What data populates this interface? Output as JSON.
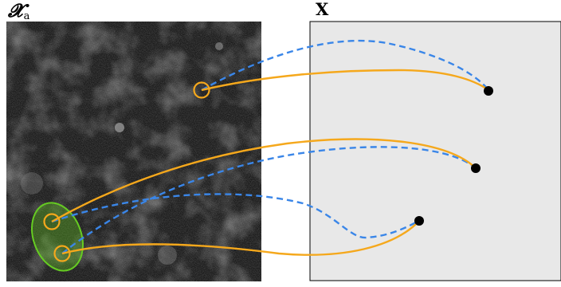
{
  "left_panel": {
    "label_main": "𝓧",
    "label_sub": "a"
  },
  "right_panel": {
    "label": "X"
  },
  "colors": {
    "solid_curve": "#f5a81c",
    "dashed_curve": "#3a86e8",
    "point": "#000000",
    "ellipse_stroke": "#66cc22",
    "ellipse_fill": "#66cc22",
    "panel_fill": "#e8e8e8",
    "image_bg": "#1a1a1a"
  },
  "icons": {
    "left_image": "grayscale-noise-microscopy-image",
    "points": "filled-black-dot",
    "source_markers": "orange-circle-marker"
  }
}
